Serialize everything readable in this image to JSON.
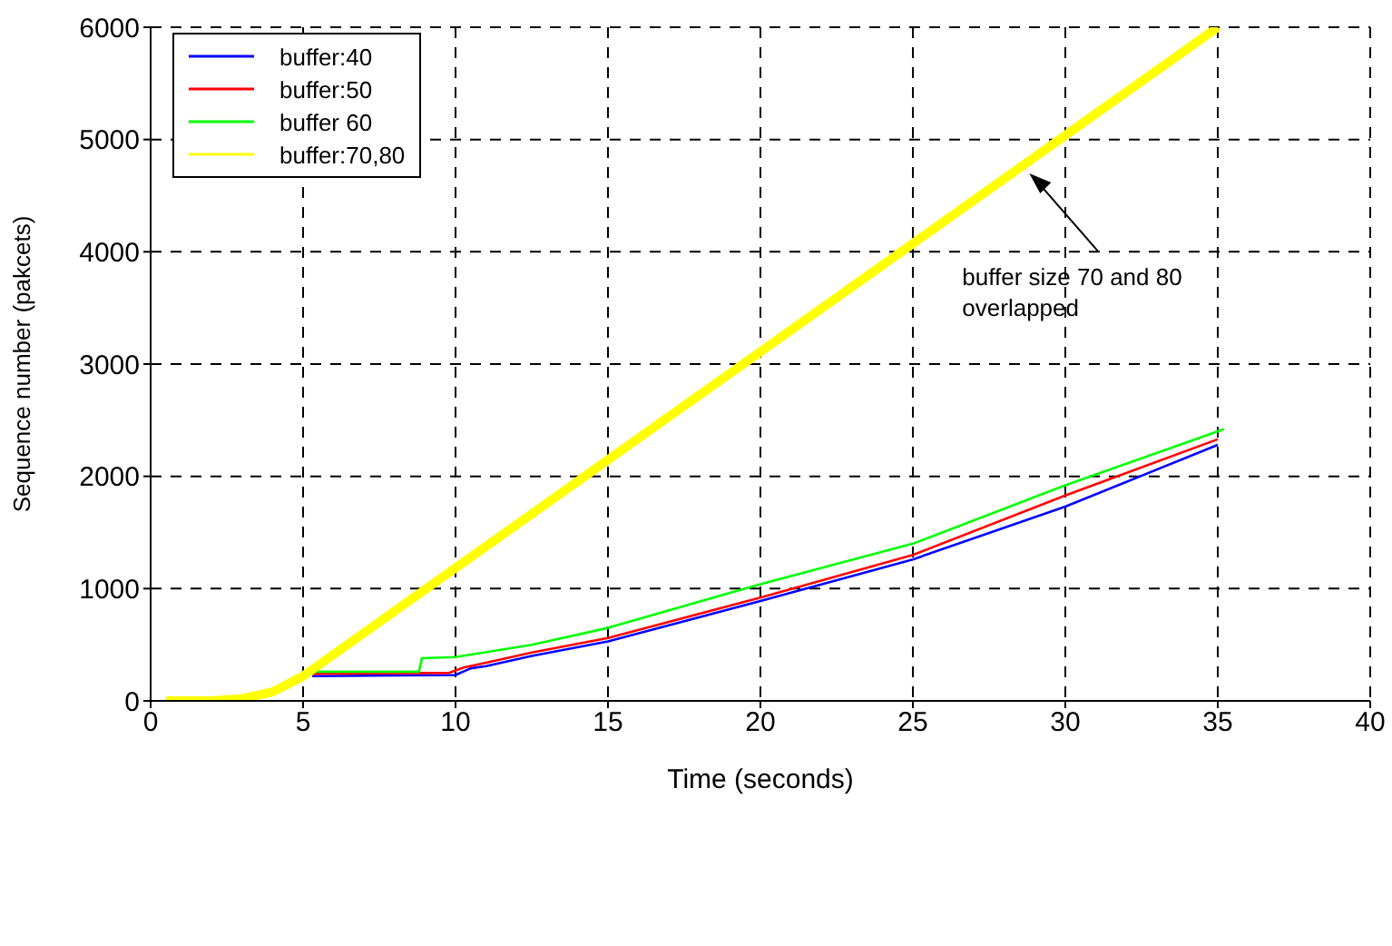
{
  "chart_data": {
    "type": "line",
    "xlabel": "Time (seconds)",
    "ylabel": "Sequence number (pakcets)",
    "xlim": [
      0,
      40
    ],
    "xticks": [
      0,
      5,
      10,
      15,
      20,
      25,
      30,
      35,
      40
    ],
    "ylim": [
      0,
      6000
    ],
    "yticks": [
      0,
      1000,
      2000,
      3000,
      4000,
      5000,
      6000
    ],
    "grid": true,
    "legend": "top left",
    "line_style": "solid",
    "marker": "none",
    "series": [
      {
        "name": "buffer:40",
        "color": "#0000ff",
        "x": [
          5.3,
          10,
          10.5,
          11,
          12.5,
          15,
          20,
          25,
          30,
          35
        ],
        "values": [
          220,
          230,
          290,
          310,
          400,
          530,
          890,
          1260,
          1730,
          2280
        ]
      },
      {
        "name": "buffer:50",
        "color": "#ff0000",
        "x": [
          5.3,
          9.8,
          10.3,
          11,
          12.5,
          15,
          20,
          25,
          30,
          35
        ],
        "values": [
          240,
          250,
          300,
          340,
          430,
          560,
          920,
          1300,
          1830,
          2330
        ]
      },
      {
        "name": "buffer 60",
        "color": "#00ff00",
        "x": [
          5.3,
          8.8,
          8.9,
          10,
          12.5,
          15,
          20,
          25,
          30,
          35.2
        ],
        "values": [
          260,
          260,
          380,
          390,
          500,
          650,
          1040,
          1400,
          1920,
          2420
        ]
      },
      {
        "name": "buffer:70,80",
        "color": "#ffff00",
        "x": [
          0.5,
          2,
          3,
          4,
          4.5,
          5,
          35
        ],
        "values": [
          0,
          0,
          20,
          80,
          150,
          220,
          6000
        ]
      }
    ],
    "annotations": [
      {
        "text": "buffer size 70 and 80 overlapped",
        "x": 28.7,
        "y": 4730
      }
    ]
  }
}
